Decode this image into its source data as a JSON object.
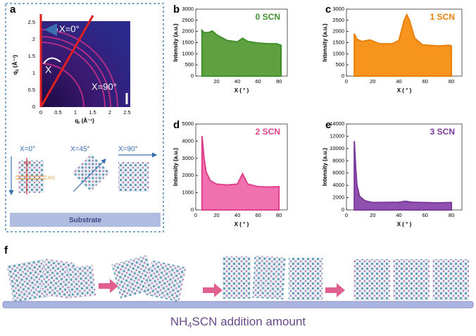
{
  "chart_data": [
    {
      "type": "area",
      "label": "b",
      "title": "0 SCN",
      "color": "#3f8f2a",
      "fill": "#5fa040",
      "x": [
        6,
        8,
        12,
        16,
        20,
        30,
        40,
        45,
        50,
        60,
        70,
        78,
        82
      ],
      "values": [
        2050,
        1950,
        1950,
        2020,
        1850,
        1600,
        1530,
        1700,
        1550,
        1480,
        1450,
        1450,
        1380
      ],
      "xlim": [
        0,
        88
      ],
      "xticks": [
        20,
        40,
        60,
        80
      ],
      "ylim": [
        0,
        3000
      ],
      "yticks": [
        0,
        500,
        1000,
        1500,
        2000,
        2500,
        3000
      ],
      "xlabel": "X ( ° )",
      "ylabel": "Intensity (a.u.)"
    },
    {
      "type": "area",
      "label": "c",
      "title": "1 SCN",
      "color": "#e8800a",
      "fill": "#f7941d",
      "x": [
        6,
        8,
        12,
        18,
        25,
        35,
        40,
        44,
        46,
        48,
        52,
        58,
        70,
        78,
        80
      ],
      "values": [
        1900,
        1650,
        1550,
        1620,
        1450,
        1450,
        1600,
        2500,
        2750,
        2500,
        1700,
        1400,
        1350,
        1380,
        1350
      ],
      "xlim": [
        0,
        88
      ],
      "xticks": [
        0,
        20,
        40,
        60,
        80
      ],
      "ylim": [
        0,
        3000
      ],
      "yticks": [
        0,
        500,
        1000,
        1500,
        2000,
        2500,
        3000
      ],
      "xlabel": "X ( ° )",
      "ylabel": "Intensity (a.u.)"
    },
    {
      "type": "area",
      "label": "d",
      "title": "2 SCN",
      "color": "#e0408a",
      "fill": "#f070b0",
      "x": [
        6,
        8,
        10,
        14,
        20,
        30,
        40,
        45,
        50,
        60,
        70,
        80
      ],
      "values": [
        4300,
        3000,
        2200,
        1700,
        1500,
        1450,
        1500,
        2100,
        1500,
        1350,
        1330,
        1350
      ],
      "xlim": [
        0,
        88
      ],
      "xticks": [
        0,
        20,
        40,
        60,
        80
      ],
      "ylim": [
        0,
        5000
      ],
      "yticks": [
        0,
        1000,
        2000,
        3000,
        4000,
        5000
      ],
      "xlabel": "X ( ° )",
      "ylabel": "Intensity (a.u.)"
    },
    {
      "type": "area",
      "label": "e",
      "title": "3 SCN",
      "color": "#7a3a9a",
      "fill": "#9050b0",
      "x": [
        6,
        7,
        8,
        10,
        14,
        20,
        40,
        45,
        50,
        70,
        80
      ],
      "values": [
        11200,
        7000,
        4000,
        2200,
        1500,
        1200,
        1250,
        1400,
        1250,
        1150,
        1200
      ],
      "xlim": [
        0,
        88
      ],
      "xticks": [
        0,
        20,
        40,
        60,
        80
      ],
      "ylim": [
        0,
        14000
      ],
      "yticks": [
        0,
        2000,
        4000,
        6000,
        8000,
        10000,
        12000,
        14000
      ],
      "xlabel": "X ( ° )",
      "ylabel": "Intensity (a.u.)"
    }
  ],
  "panel_a": {
    "label": "a",
    "chi0": "X=0°",
    "chi": "X",
    "chi90": "X=90°",
    "qz": {
      "main": "q",
      "sub": "z",
      "unit": "(Å⁻¹)"
    },
    "qr": {
      "main": "q",
      "sub": "r",
      "unit": "(Å⁻¹)"
    },
    "ticks": [
      0,
      0.5,
      1,
      1.5,
      2,
      2.5
    ],
    "schematic": [
      "X=0°",
      "X=45°",
      "X=90°"
    ],
    "plane1": "0k0",
    "plane2": "h01",
    "substrate": "Substrate"
  },
  "panel_f": {
    "label": "f",
    "caption": {
      "a": "NH",
      "sub": "4",
      "b": "SCN addition amount"
    }
  }
}
